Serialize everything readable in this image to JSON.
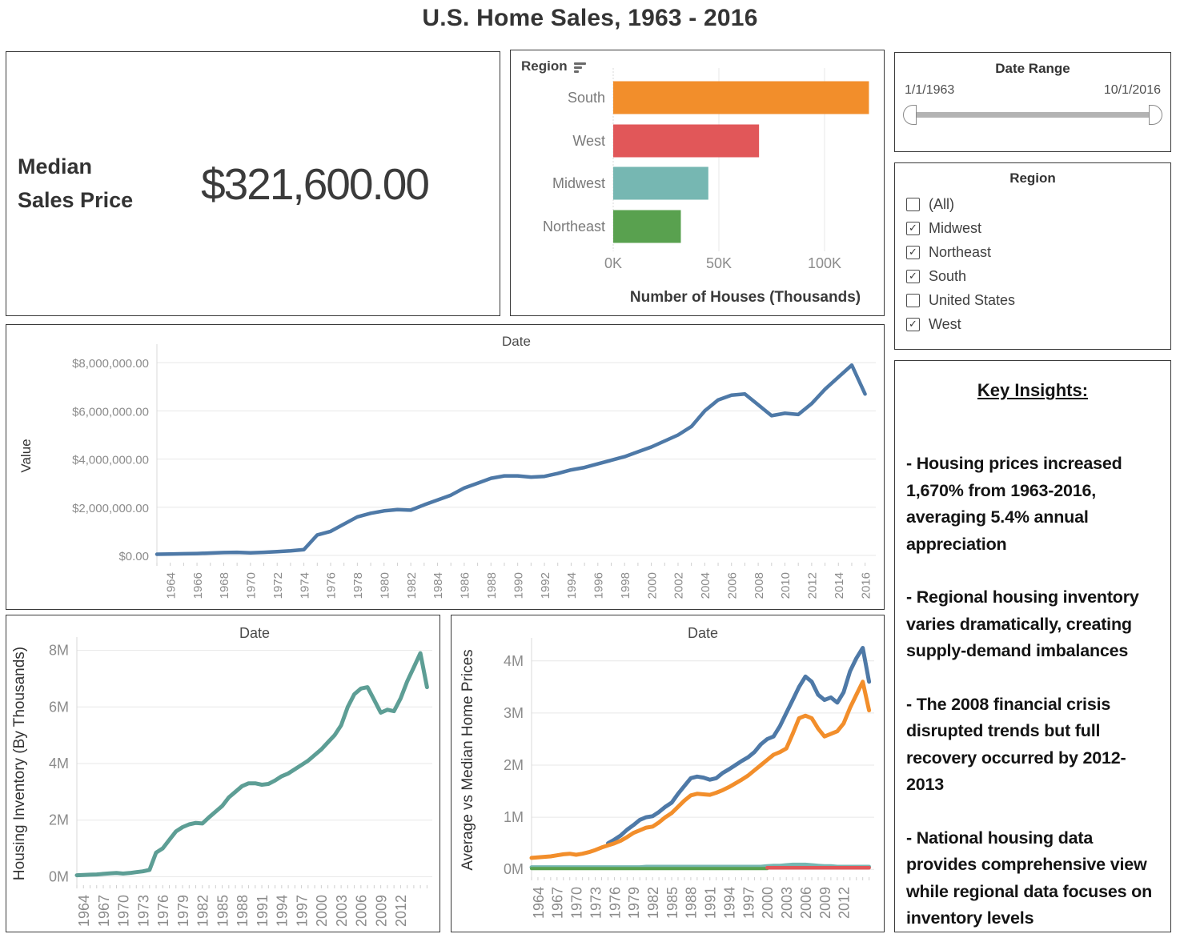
{
  "title": "U.S. Home Sales, 1963 - 2016",
  "kpi": {
    "label": "Median Sales Price",
    "value": "$321,600.00"
  },
  "bar_panel": {
    "header": "Region",
    "sort_icon": "sort-descending-icon"
  },
  "date_range": {
    "title": "Date Range",
    "start": "1/1/1963",
    "end": "10/1/2016"
  },
  "region_filter": {
    "title": "Region",
    "options": [
      {
        "label": "(All)",
        "checked": false
      },
      {
        "label": "Midwest",
        "checked": true
      },
      {
        "label": "Northeast",
        "checked": true
      },
      {
        "label": "South",
        "checked": true
      },
      {
        "label": "United States",
        "checked": false
      },
      {
        "label": "West",
        "checked": true
      }
    ]
  },
  "key_insights": {
    "heading": "Key Insights:",
    "bullets": [
      "- Housing prices increased 1,670% from 1963-2016, averaging 5.4% annual appreciation",
      "- Regional housing inventory varies dramatically, creating supply-demand imbalances",
      "- The 2008 financial crisis disrupted trends but full recovery occurred by 2012-2013",
      "- National housing data provides comprehensive view while regional data focuses on inventory levels"
    ]
  },
  "palette": {
    "blue": "#4e79a7",
    "orange": "#f28e2b",
    "red": "#e15759",
    "teal": "#76b7b2",
    "green": "#59a14f",
    "inventory_teal": "#5d9e95"
  },
  "chart_data": [
    {
      "id": "region-bar",
      "type": "bar",
      "orientation": "horizontal",
      "title": "Region",
      "categories": [
        "South",
        "West",
        "Midwest",
        "Northeast"
      ],
      "values": [
        121,
        69,
        45,
        32
      ],
      "colors": [
        "#f28e2b",
        "#e15759",
        "#76b7b2",
        "#59a14f"
      ],
      "xlabel": "Number of Houses (Thousands)",
      "xticks": [
        0,
        50,
        100
      ],
      "xtick_labels": [
        "0K",
        "50K",
        "100K"
      ],
      "xlim": [
        0,
        125
      ],
      "grid": true
    },
    {
      "id": "value-line",
      "type": "line",
      "title": "Date",
      "ylabel": "Value",
      "x": [
        1963,
        1964,
        1965,
        1966,
        1967,
        1968,
        1969,
        1970,
        1971,
        1972,
        1973,
        1974,
        1975,
        1976,
        1977,
        1978,
        1979,
        1980,
        1981,
        1982,
        1983,
        1984,
        1985,
        1986,
        1987,
        1988,
        1989,
        1990,
        1991,
        1992,
        1993,
        1994,
        1995,
        1996,
        1997,
        1998,
        1999,
        2000,
        2001,
        2002,
        2003,
        2004,
        2005,
        2006,
        2007,
        2008,
        2009,
        2010,
        2011,
        2012,
        2013,
        2014,
        2015,
        2016
      ],
      "unit": "millions of dollars",
      "series": [
        {
          "name": "value",
          "color": "#4e79a7",
          "values": [
            0.05,
            0.06,
            0.07,
            0.08,
            0.1,
            0.12,
            0.13,
            0.11,
            0.13,
            0.16,
            0.19,
            0.24,
            0.85,
            1.0,
            1.3,
            1.6,
            1.75,
            1.85,
            1.9,
            1.88,
            2.1,
            2.3,
            2.5,
            2.8,
            3.0,
            3.2,
            3.3,
            3.3,
            3.25,
            3.28,
            3.4,
            3.55,
            3.65,
            3.8,
            3.95,
            4.1,
            4.3,
            4.5,
            4.75,
            5.0,
            5.35,
            6.0,
            6.45,
            6.65,
            6.7,
            6.25,
            5.8,
            5.9,
            5.85,
            6.3,
            6.9,
            7.4,
            7.9,
            6.7
          ]
        }
      ],
      "yticks": [
        0,
        2,
        4,
        6,
        8
      ],
      "ytick_labels": [
        "$0.00",
        "$2,000,000.00",
        "$4,000,000.00",
        "$6,000,000.00",
        "$8,000,000.00"
      ],
      "ylim": [
        -0.3,
        8.57
      ],
      "xticks": [
        1964,
        1966,
        1968,
        1970,
        1972,
        1974,
        1976,
        1978,
        1980,
        1982,
        1984,
        1986,
        1988,
        1990,
        1992,
        1994,
        1996,
        1998,
        2000,
        2002,
        2004,
        2006,
        2008,
        2010,
        2012,
        2014,
        2016
      ],
      "xlim": [
        1963,
        2016.8
      ],
      "grid": true
    },
    {
      "id": "inventory-line",
      "type": "line",
      "title": "Date",
      "ylabel": "Housing Inventory (By Thousands)",
      "x": [
        1963,
        1964,
        1965,
        1966,
        1967,
        1968,
        1969,
        1970,
        1971,
        1972,
        1973,
        1974,
        1975,
        1976,
        1977,
        1978,
        1979,
        1980,
        1981,
        1982,
        1983,
        1984,
        1985,
        1986,
        1987,
        1988,
        1989,
        1990,
        1991,
        1992,
        1993,
        1994,
        1995,
        1996,
        1997,
        1998,
        1999,
        2000,
        2001,
        2002,
        2003,
        2004,
        2005,
        2006,
        2007,
        2008,
        2009,
        2010,
        2011,
        2012,
        2013,
        2014,
        2015,
        2016
      ],
      "unit": "millions",
      "series": [
        {
          "name": "housing-inventory",
          "color": "#5d9e95",
          "values": [
            0.05,
            0.06,
            0.07,
            0.08,
            0.1,
            0.12,
            0.13,
            0.11,
            0.13,
            0.16,
            0.19,
            0.24,
            0.85,
            1.0,
            1.3,
            1.6,
            1.75,
            1.85,
            1.9,
            1.88,
            2.1,
            2.3,
            2.5,
            2.8,
            3.0,
            3.2,
            3.3,
            3.3,
            3.25,
            3.28,
            3.4,
            3.55,
            3.65,
            3.8,
            3.95,
            4.1,
            4.3,
            4.5,
            4.75,
            5.0,
            5.35,
            6.0,
            6.45,
            6.65,
            6.7,
            6.25,
            5.8,
            5.9,
            5.85,
            6.3,
            6.9,
            7.4,
            7.9,
            6.7
          ]
        }
      ],
      "yticks": [
        0,
        2,
        4,
        6,
        8
      ],
      "ytick_labels": [
        "0M",
        "2M",
        "4M",
        "6M",
        "8M"
      ],
      "ylim": [
        -0.3,
        8.3
      ],
      "xticks": [
        1964,
        1967,
        1970,
        1973,
        1976,
        1979,
        1982,
        1985,
        1988,
        1991,
        1994,
        1997,
        2000,
        2003,
        2006,
        2009,
        2012
      ],
      "xlim": [
        1963,
        2016.8
      ],
      "grid": true
    },
    {
      "id": "avgmed-line",
      "type": "line",
      "title": "Date",
      "ylabel": "Average vs Median Home Prices",
      "x": [
        1963,
        1964,
        1965,
        1966,
        1967,
        1968,
        1969,
        1970,
        1971,
        1972,
        1973,
        1974,
        1975,
        1976,
        1977,
        1978,
        1979,
        1980,
        1981,
        1982,
        1983,
        1984,
        1985,
        1986,
        1987,
        1988,
        1989,
        1990,
        1991,
        1992,
        1993,
        1994,
        1995,
        1996,
        1997,
        1998,
        1999,
        2000,
        2001,
        2002,
        2003,
        2004,
        2005,
        2006,
        2007,
        2008,
        2009,
        2010,
        2011,
        2012,
        2013,
        2014,
        2015,
        2016
      ],
      "unit": "millions",
      "series": [
        {
          "name": "average",
          "color": "#4e79a7",
          "values": [
            null,
            null,
            null,
            null,
            null,
            null,
            null,
            null,
            null,
            null,
            null,
            null,
            0.5,
            0.57,
            0.65,
            0.76,
            0.85,
            0.95,
            1.0,
            1.02,
            1.1,
            1.2,
            1.28,
            1.45,
            1.6,
            1.75,
            1.78,
            1.76,
            1.72,
            1.75,
            1.85,
            1.92,
            2.0,
            2.08,
            2.15,
            2.25,
            2.4,
            2.5,
            2.55,
            2.75,
            3.0,
            3.25,
            3.5,
            3.7,
            3.6,
            3.35,
            3.25,
            3.3,
            3.2,
            3.4,
            3.8,
            4.05,
            4.25,
            3.6
          ]
        },
        {
          "name": "median",
          "color": "#f28e2b",
          "values": [
            0.22,
            0.23,
            0.24,
            0.25,
            0.27,
            0.29,
            0.3,
            0.28,
            0.3,
            0.33,
            0.37,
            0.42,
            0.46,
            0.5,
            0.55,
            0.62,
            0.7,
            0.75,
            0.8,
            0.82,
            0.9,
            1.0,
            1.08,
            1.2,
            1.32,
            1.42,
            1.45,
            1.44,
            1.43,
            1.47,
            1.52,
            1.58,
            1.65,
            1.72,
            1.8,
            1.9,
            2.0,
            2.1,
            2.2,
            2.25,
            2.32,
            2.6,
            2.9,
            2.95,
            2.9,
            2.7,
            2.55,
            2.6,
            2.65,
            2.8,
            3.1,
            3.35,
            3.6,
            3.05
          ]
        },
        {
          "name": "regional-teal",
          "color": "#76b7b2",
          "values": [
            0.04,
            0.04,
            0.04,
            0.04,
            0.04,
            0.04,
            0.04,
            0.04,
            0.04,
            0.04,
            0.04,
            0.04,
            0.04,
            0.04,
            0.04,
            0.04,
            0.04,
            0.04,
            0.05,
            0.05,
            0.05,
            0.05,
            0.05,
            0.05,
            0.05,
            0.05,
            0.05,
            0.05,
            0.05,
            0.05,
            0.05,
            0.05,
            0.05,
            0.05,
            0.05,
            0.05,
            0.05,
            0.06,
            0.07,
            0.07,
            0.08,
            0.09,
            0.09,
            0.09,
            0.08,
            0.07,
            0.06,
            0.06,
            0.05,
            0.05,
            0.05,
            0.05,
            0.05,
            0.05
          ]
        },
        {
          "name": "regional-green",
          "color": "#59a14f",
          "lw": 4,
          "values": [
            0.015,
            0.015,
            0.015,
            0.015,
            0.015,
            0.015,
            0.015,
            0.015,
            0.015,
            0.015,
            0.015,
            0.015,
            0.015,
            0.015,
            0.015,
            0.015,
            0.015,
            0.015,
            0.015,
            0.015,
            0.015,
            0.015,
            0.015,
            0.015,
            0.015,
            0.015,
            0.015,
            0.015,
            0.015,
            0.015,
            0.015,
            0.015,
            0.015,
            0.015,
            0.015,
            0.015,
            0.015,
            0.015,
            null,
            null,
            null,
            null,
            null,
            null,
            null,
            null,
            null,
            null,
            null,
            null,
            null,
            null,
            null,
            null
          ]
        },
        {
          "name": "regional-red",
          "color": "#e15759",
          "lw": 4.5,
          "values": [
            null,
            null,
            null,
            null,
            null,
            null,
            null,
            null,
            null,
            null,
            null,
            null,
            null,
            null,
            null,
            null,
            null,
            null,
            null,
            null,
            null,
            null,
            null,
            null,
            null,
            null,
            null,
            null,
            null,
            null,
            null,
            null,
            null,
            null,
            null,
            null,
            null,
            0.03,
            0.03,
            0.03,
            0.03,
            0.03,
            0.03,
            0.03,
            0.03,
            0.03,
            0.03,
            0.03,
            0.03,
            0.03,
            0.03,
            0.03,
            0.03,
            0.03
          ]
        }
      ],
      "yticks": [
        0,
        1,
        2,
        3,
        4
      ],
      "ytick_labels": [
        "0M",
        "1M",
        "2M",
        "3M",
        "4M"
      ],
      "ylim": [
        -0.15,
        4.35
      ],
      "xticks": [
        1964,
        1967,
        1970,
        1973,
        1976,
        1979,
        1982,
        1985,
        1988,
        1991,
        1994,
        1997,
        2000,
        2003,
        2006,
        2009,
        2012
      ],
      "xlim": [
        1963,
        2016.8
      ],
      "grid": true
    }
  ]
}
